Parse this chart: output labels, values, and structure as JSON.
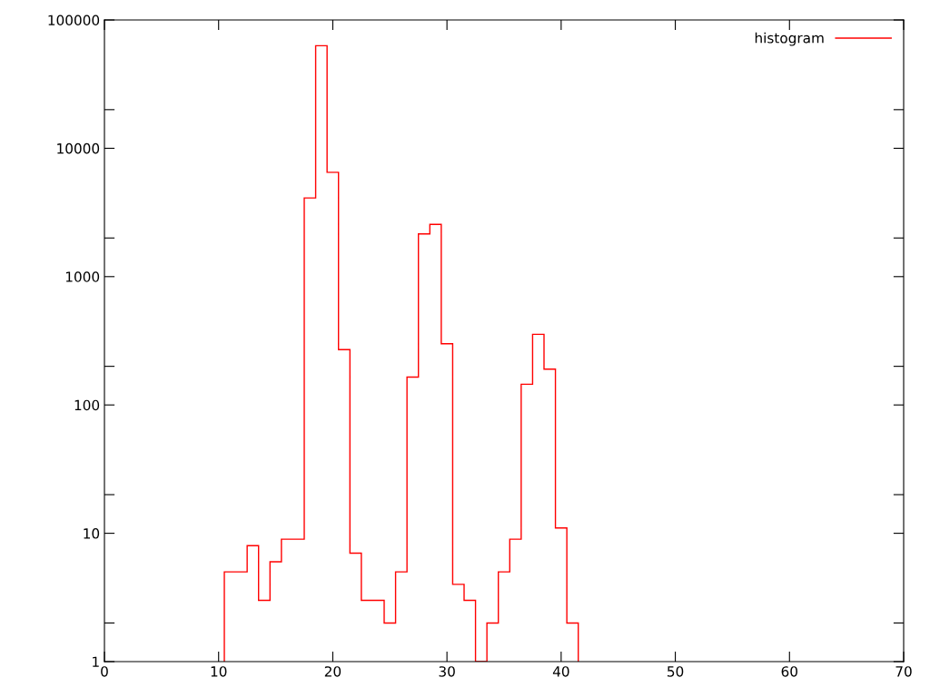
{
  "chart_data": {
    "type": "histogram",
    "log": "y",
    "grid": false,
    "legend": "top right",
    "bins": [
      10.5,
      11.5,
      12.5,
      13.5,
      14.5,
      15.5,
      16.5,
      17.5,
      18.5,
      19.5,
      20.5,
      21.5,
      22.5,
      23.5,
      24.5,
      25.5,
      26.5,
      27.5,
      28.5,
      29.5,
      30.5,
      31.5,
      32.5,
      33.5,
      34.5,
      35.5,
      36.5,
      37.5,
      38.5,
      39.5,
      40.5,
      41.5
    ],
    "series": [
      {
        "name": "histogram",
        "color": "#ff0000",
        "values": [
          5,
          5,
          8,
          3,
          6,
          9,
          9,
          4100,
          63000,
          6500,
          270,
          7,
          3,
          3,
          2,
          5,
          165,
          2150,
          2550,
          300,
          4,
          3,
          1,
          2,
          5,
          9,
          145,
          355,
          190,
          11,
          2
        ]
      }
    ],
    "xlim": [
      0,
      70
    ],
    "xticks": [
      0,
      10,
      20,
      30,
      40,
      50,
      60,
      70
    ],
    "ylim": [
      1,
      100000
    ],
    "yticks": [
      1,
      {
        "value": 2,
        "label": null
      },
      10,
      {
        "value": 20,
        "label": null
      },
      100,
      {
        "value": 200,
        "label": null
      },
      1000,
      {
        "value": 2000,
        "label": null
      },
      10000,
      {
        "value": 20000,
        "label": null
      },
      100000
    ]
  }
}
